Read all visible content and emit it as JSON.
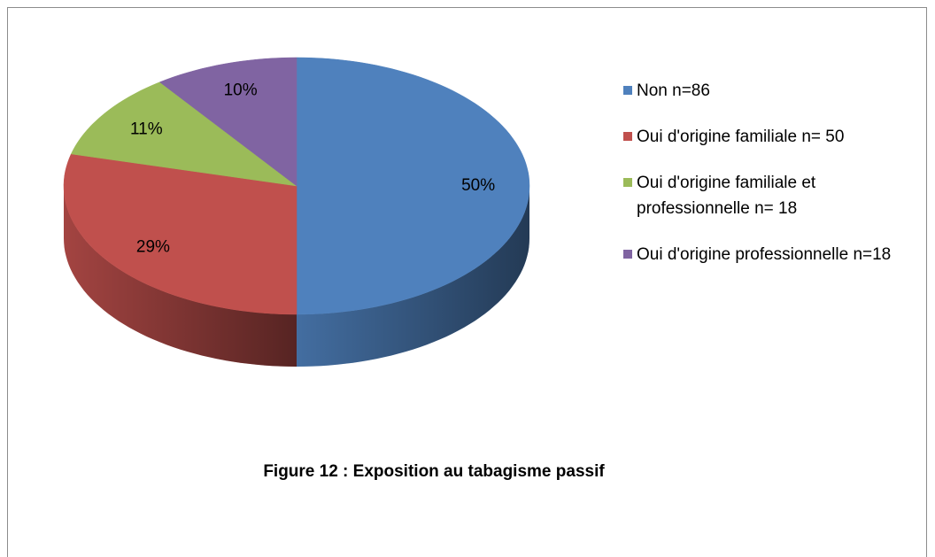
{
  "chart_data": {
    "type": "pie",
    "title": "Figure 12 : Exposition au tabagisme passif",
    "categories": [
      "Non n=86",
      "Oui d'origine familiale n= 50",
      "Oui d'origine familiale et professionnelle n= 18",
      "Oui d'origine professionnelle n=18"
    ],
    "values": [
      50,
      29,
      11,
      10
    ],
    "value_labels": [
      "50%",
      "29%",
      "11%",
      "10%"
    ],
    "colors": [
      "#4f81bd",
      "#c0504d",
      "#9bbb59",
      "#8064a2"
    ],
    "legend": "right"
  }
}
